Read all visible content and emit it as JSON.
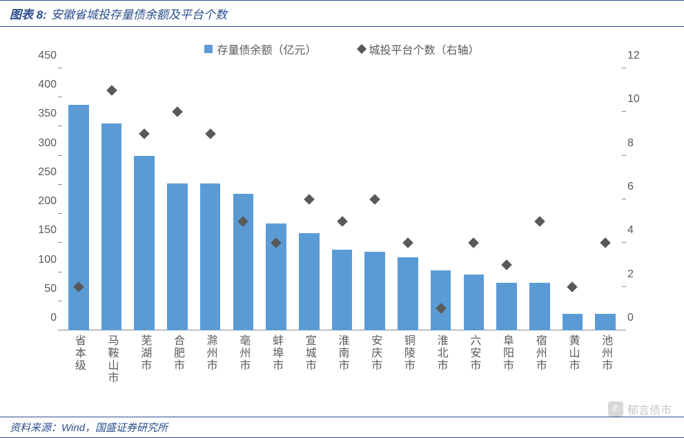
{
  "title": {
    "prefix": "图表 8:",
    "text": "安徽省城投存量债余额及平台个数"
  },
  "source": "资料来源：Wind，国盛证券研究所",
  "watermark": "郁言债市",
  "chart": {
    "type": "bar+scatter-dual-axis",
    "background_color": "#ffffff",
    "bar_color": "#5b9bd5",
    "marker_color": "#595959",
    "text_color": "#595959",
    "border_color": "#2a4d8c",
    "axis_color": "#888888",
    "label_fontsize": 16,
    "title_fontsize": 17,
    "bar_width_ratio": 0.62,
    "marker_style": "diamond",
    "marker_size": 11,
    "legend": {
      "series1": "存量债余额（亿元）",
      "series2": "城投平台个数（右轴）"
    },
    "y_left": {
      "min": 0,
      "max": 450,
      "step": 50
    },
    "y_right": {
      "min": 0,
      "max": 12,
      "step": 2
    },
    "categories": [
      "省本级",
      "马鞍山市",
      "芜湖市",
      "合肥市",
      "滁州市",
      "亳州市",
      "蚌埠市",
      "宣城市",
      "淮南市",
      "安庆市",
      "铜陵市",
      "淮北市",
      "六安市",
      "阜阳市",
      "宿州市",
      "黄山市",
      "池州市"
    ],
    "bar_values": [
      387,
      355,
      300,
      252,
      252,
      235,
      183,
      167,
      138,
      135,
      125,
      103,
      96,
      82,
      82,
      29,
      29
    ],
    "marker_values": [
      2,
      11,
      9,
      10,
      9,
      5,
      4,
      6,
      5,
      6,
      4,
      1,
      4,
      3,
      5,
      2,
      4
    ]
  }
}
